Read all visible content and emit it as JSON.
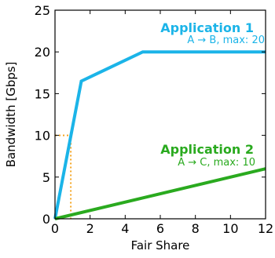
{
  "chart_data": {
    "type": "line",
    "title": "",
    "xlabel": "Fair Share",
    "ylabel": "Bandwidth [Gbps]",
    "xlim": [
      0,
      12
    ],
    "ylim": [
      0,
      25
    ],
    "xticks": [
      0,
      2,
      4,
      6,
      8,
      10,
      12
    ],
    "yticks": [
      0,
      5,
      10,
      15,
      20,
      25
    ],
    "grid": false,
    "series": [
      {
        "name": "Application 1",
        "color": "#1bb4e8",
        "points": [
          [
            0,
            0
          ],
          [
            1.5,
            16.5
          ],
          [
            5,
            20
          ],
          [
            12,
            20
          ]
        ]
      },
      {
        "name": "Application 2",
        "color": "#2aaa1f",
        "points": [
          [
            0,
            0
          ],
          [
            12,
            6
          ]
        ]
      }
    ],
    "guides": [
      {
        "color": "#f5a623",
        "style": "dotted",
        "points": [
          [
            0,
            10
          ],
          [
            0.9,
            10
          ],
          [
            0.9,
            0
          ]
        ]
      }
    ],
    "annotations": [
      {
        "title": "Application 1",
        "subtitle": "A → B,  max: 20",
        "color": "#1bb4e8"
      },
      {
        "title": "Application 2",
        "subtitle": "A → C,  max: 10",
        "color": "#2aaa1f"
      }
    ]
  }
}
